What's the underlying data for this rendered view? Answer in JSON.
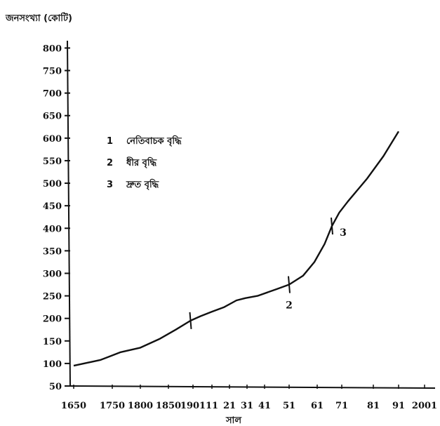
{
  "chart_data": {
    "type": "line",
    "ylabel": "জনসংখ্যা (কোটি)",
    "xlabel": "সাল",
    "y_ticks": [
      50,
      100,
      150,
      200,
      250,
      300,
      350,
      400,
      450,
      500,
      550,
      600,
      650,
      700,
      750,
      800
    ],
    "ylim": [
      50,
      810
    ],
    "x_ticks": [
      "1650",
      "1750",
      "1800",
      "1850",
      "1901",
      "11",
      "21",
      "31",
      "41",
      "51",
      "61",
      "71",
      "81",
      "91",
      "2001"
    ],
    "series": [
      {
        "x_index": [
          0,
          0.7,
          1.3,
          2.0,
          2.7,
          3.3,
          3.9,
          4.4,
          5.0,
          5.7,
          6.4,
          6.9,
          7.6,
          8.5,
          9.0,
          9.5,
          9.9,
          10.3,
          10.6,
          10.9,
          11.2,
          11.8,
          12.4,
          13.0
        ],
        "y": [
          95,
          108,
          125,
          135,
          155,
          175,
          195,
          205,
          215,
          225,
          240,
          245,
          250,
          265,
          275,
          295,
          325,
          365,
          405,
          435,
          460,
          510,
          560,
          615
        ]
      }
    ],
    "phase_markers": [
      {
        "label": "",
        "x_index": 3.9,
        "y": 195
      },
      {
        "label": "2",
        "x_index": 9.0,
        "y": 275
      },
      {
        "label": "3",
        "x_index": 10.6,
        "y": 405
      }
    ],
    "legend": [
      {
        "number": "1",
        "text": "নেতিবাচক বৃদ্ধি"
      },
      {
        "number": "2",
        "text": "ধীর বৃদ্ধি"
      },
      {
        "number": "3",
        "text": "দ্রুত বৃদ্ধি"
      }
    ],
    "legend_position": "top-left",
    "grid": false
  }
}
